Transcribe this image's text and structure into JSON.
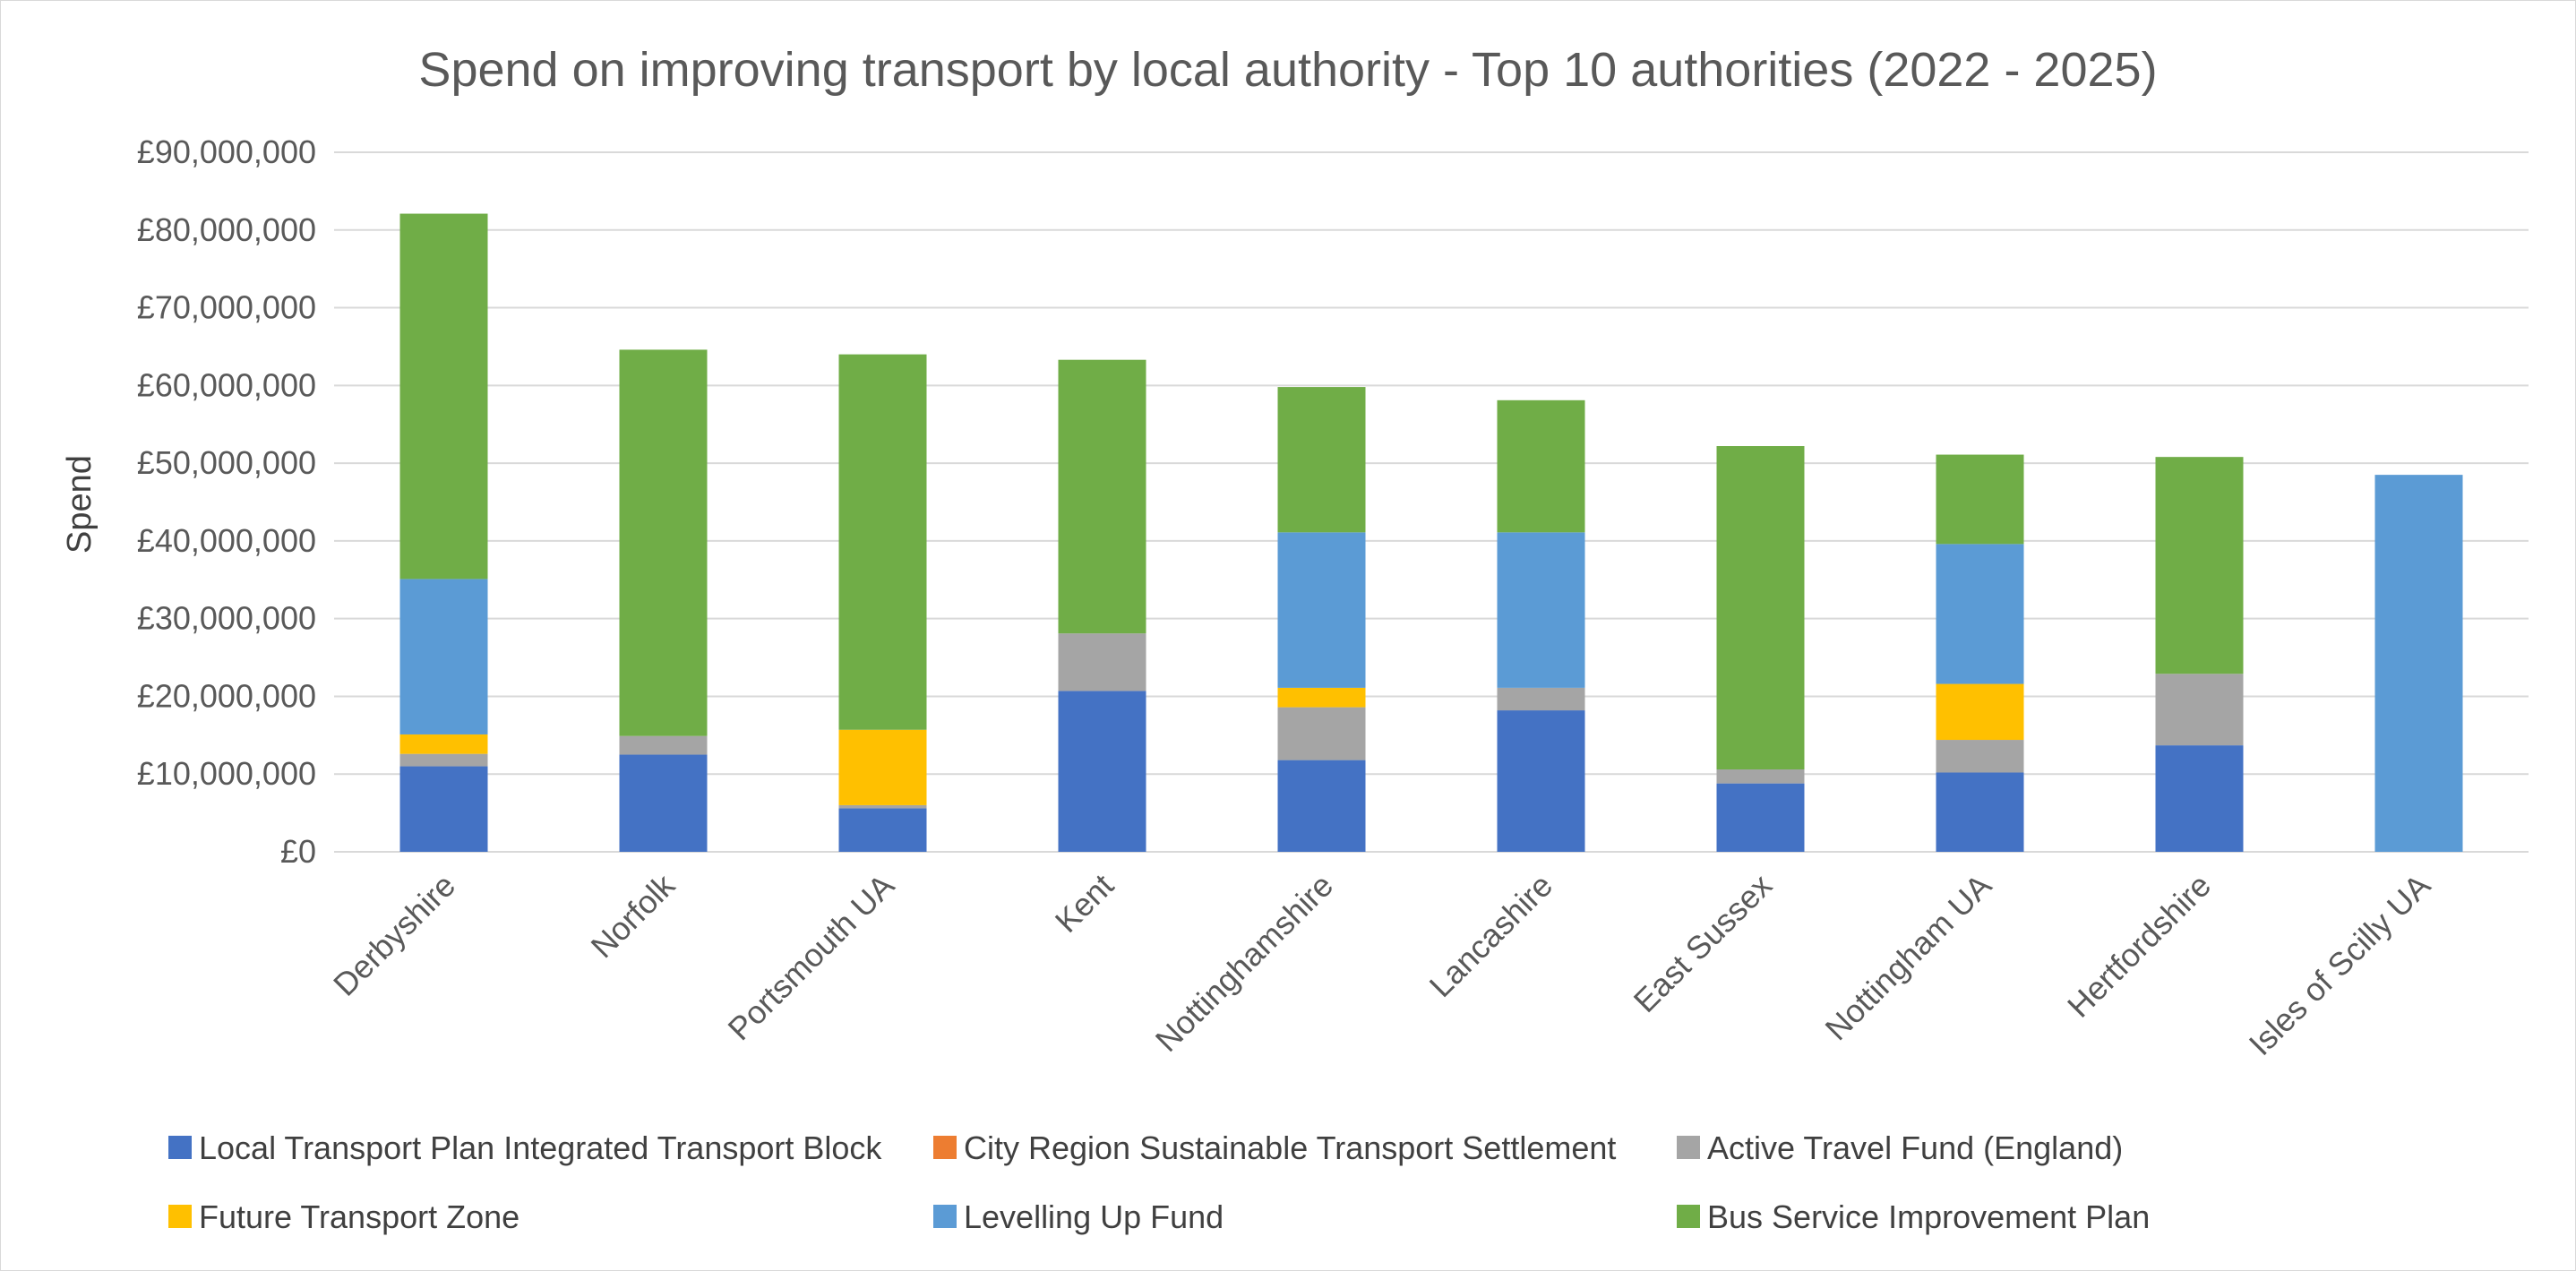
{
  "chart_data": {
    "type": "bar",
    "stacked": true,
    "title": "Spend on improving transport by local authority - Top 10 authorities (2022 - 2025)",
    "xlabel": "",
    "ylabel": "Spend",
    "ylim": [
      0,
      90000000
    ],
    "yticks": [
      0,
      10000000,
      20000000,
      30000000,
      40000000,
      50000000,
      60000000,
      70000000,
      80000000,
      90000000
    ],
    "ytick_labels": [
      "£0",
      "£10,000,000",
      "£20,000,000",
      "£30,000,000",
      "£40,000,000",
      "£50,000,000",
      "£60,000,000",
      "£70,000,000",
      "£80,000,000",
      "£90,000,000"
    ],
    "grid": true,
    "legend_position": "bottom",
    "categories": [
      "Derbyshire",
      "Norfolk",
      "Portsmouth UA",
      "Kent",
      "Nottinghamshire",
      "Lancashire",
      "East Sussex",
      "Nottingham UA",
      "Hertfordshire",
      "Isles of Scilly UA"
    ],
    "series": [
      {
        "name": "Local Transport Plan Integrated Transport Block",
        "color": "#4472C4",
        "values": [
          11000000,
          12500000,
          5600000,
          20700000,
          11800000,
          18200000,
          8800000,
          10200000,
          13700000,
          0
        ]
      },
      {
        "name": "City Region Sustainable Transport Settlement",
        "color": "#ED7D31",
        "values": [
          0,
          0,
          0,
          0,
          0,
          0,
          0,
          0,
          0,
          0
        ]
      },
      {
        "name": "Active Travel Fund (England)",
        "color": "#A5A5A5",
        "values": [
          1600000,
          2400000,
          400000,
          7400000,
          6800000,
          2900000,
          1800000,
          4200000,
          9200000,
          0
        ]
      },
      {
        "name": "Future Transport Zone",
        "color": "#FFC000",
        "values": [
          2500000,
          0,
          9700000,
          0,
          2500000,
          0,
          0,
          7200000,
          0,
          0
        ]
      },
      {
        "name": "Levelling Up Fund",
        "color": "#5B9BD5",
        "values": [
          20000000,
          0,
          0,
          0,
          20000000,
          20000000,
          0,
          18000000,
          0,
          48500000
        ]
      },
      {
        "name": "Bus Service Improvement Plan",
        "color": "#70AD47",
        "values": [
          47000000,
          49700000,
          48300000,
          35200000,
          18700000,
          17000000,
          41600000,
          11500000,
          27900000,
          0
        ]
      }
    ]
  }
}
